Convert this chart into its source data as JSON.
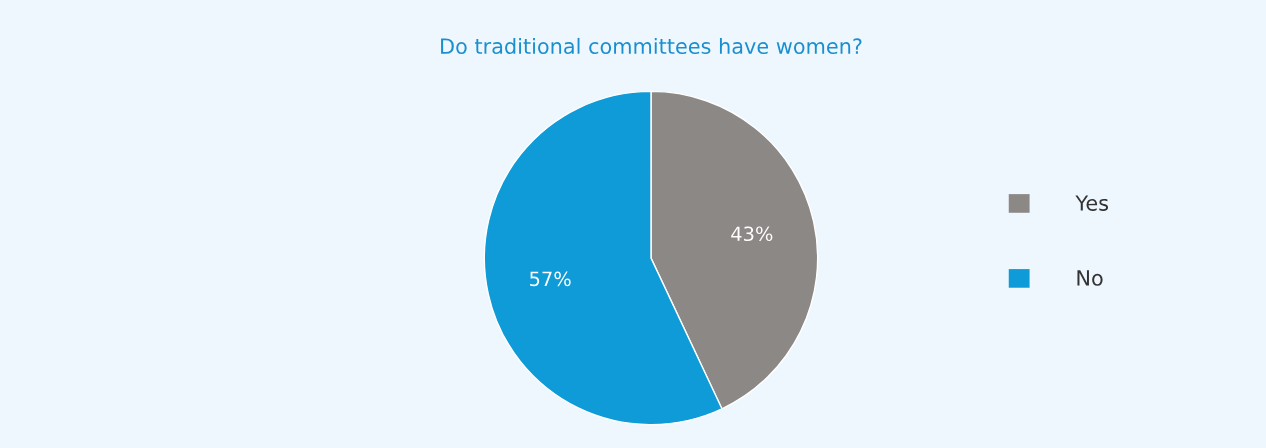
{
  "chart_data": {
    "type": "pie",
    "title": "Do traditional committees have women?",
    "categories": [
      "Yes",
      "No"
    ],
    "values": [
      43,
      57
    ],
    "colors": [
      "#8c8886",
      "#0e9bd8"
    ],
    "value_labels": [
      "43%",
      "57%"
    ],
    "legend": "right"
  }
}
